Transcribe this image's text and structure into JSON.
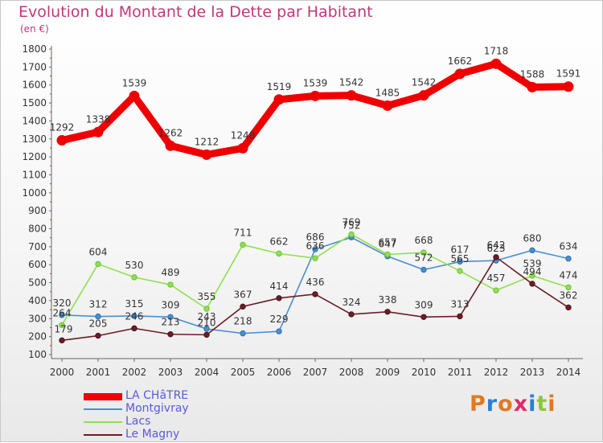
{
  "title": "Evolution du Montant de la Dette par Habitant",
  "unit": "(en €)",
  "brand": "Proxiti",
  "chart_data": {
    "type": "line",
    "x": [
      "2000",
      "2001",
      "2002",
      "2003",
      "2004",
      "2005",
      "2006",
      "2007",
      "2008",
      "2009",
      "2010",
      "2011",
      "2012",
      "2013",
      "2014"
    ],
    "ylim": [
      100,
      1800
    ],
    "yticks": [
      100,
      200,
      300,
      400,
      500,
      600,
      700,
      800,
      900,
      1000,
      1100,
      1200,
      1300,
      1400,
      1500,
      1600,
      1700,
      1800
    ],
    "grid": false,
    "legend_position": "bottom-left",
    "series": [
      {
        "name": "LA CHâTRE",
        "color": "#ee0000",
        "values": [
          1292,
          1338,
          1539,
          1262,
          1212,
          1248,
          1519,
          1539,
          1542,
          1485,
          1542,
          1662,
          1718,
          1588,
          1591
        ]
      },
      {
        "name": "Montgivray",
        "color": "#4a8ed0",
        "values": [
          320,
          312,
          315,
          309,
          243,
          218,
          229,
          686,
          752,
          647,
          572,
          617,
          623,
          680,
          634
        ]
      },
      {
        "name": "Lacs",
        "color": "#8ee050",
        "values": [
          264,
          604,
          530,
          489,
          355,
          711,
          662,
          636,
          769,
          657,
          668,
          565,
          457,
          539,
          474
        ]
      },
      {
        "name": "Le Magny",
        "color": "#6b1e26",
        "values": [
          179,
          205,
          246,
          213,
          210,
          367,
          414,
          436,
          324,
          338,
          309,
          313,
          642,
          494,
          362
        ]
      }
    ]
  }
}
